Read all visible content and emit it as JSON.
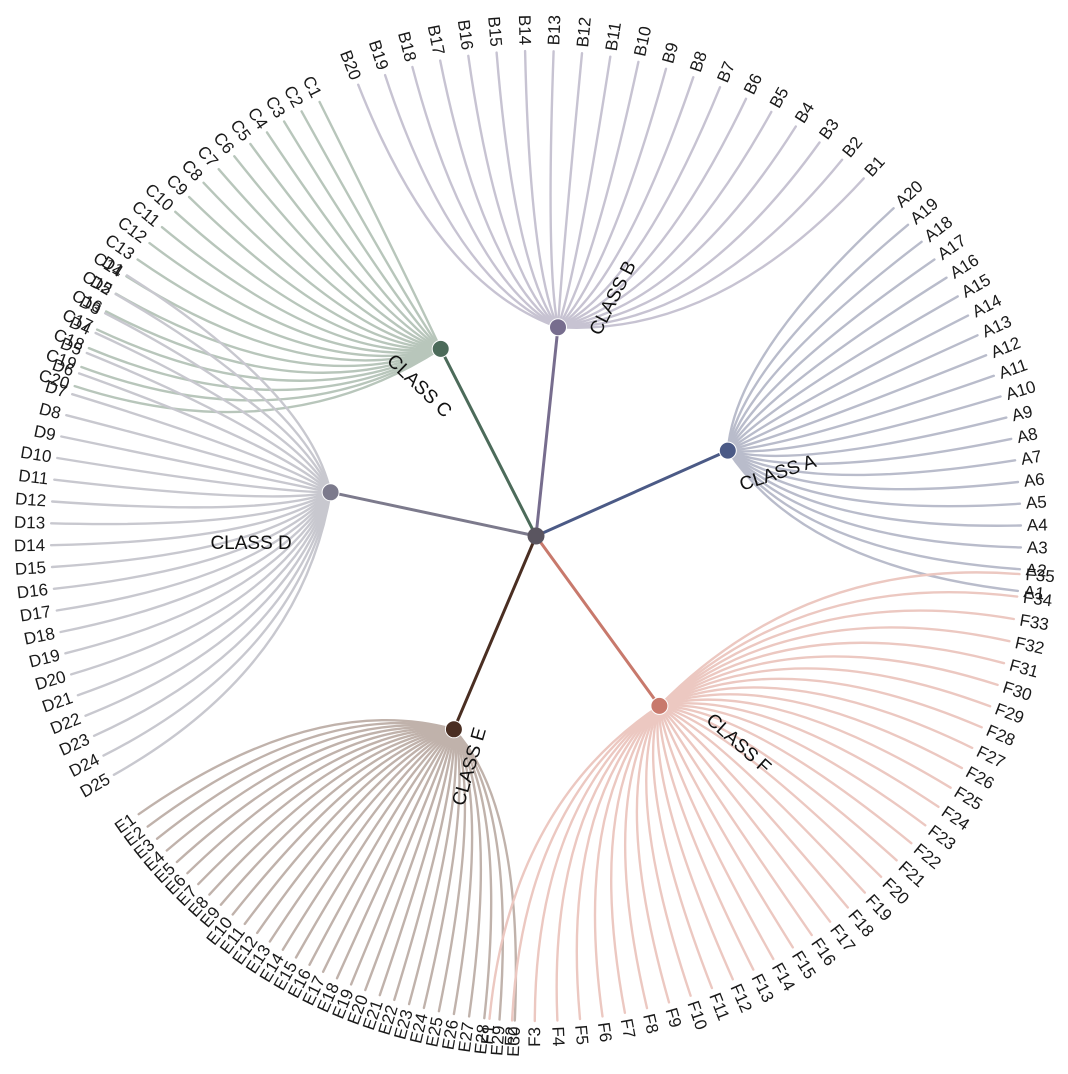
{
  "diagram": {
    "type": "circular-dendrogram",
    "root_color": "#5a5560",
    "groups": [
      {
        "name": "CLASS A",
        "color": "#4b5a86",
        "leaf_color": "#b9bccb",
        "leaves": [
          "A1",
          "A2",
          "A3",
          "A4",
          "A5",
          "A6",
          "A7",
          "A8",
          "A9",
          "A10",
          "A11",
          "A12",
          "A13",
          "A14",
          "A15",
          "A16",
          "A17",
          "A18",
          "A19",
          "A20"
        ]
      },
      {
        "name": "CLASS B",
        "color": "#776d8e",
        "leaf_color": "#c7c3d2",
        "leaves": [
          "B1",
          "B2",
          "B3",
          "B4",
          "B5",
          "B6",
          "B7",
          "B8",
          "B9",
          "B10",
          "B11",
          "B12",
          "B13",
          "B14",
          "B15",
          "B16",
          "B17",
          "B18",
          "B19",
          "B20"
        ]
      },
      {
        "name": "CLASS C",
        "color": "#4c6b5a",
        "leaf_color": "#b8c6bb",
        "leaves": [
          "C1",
          "C2",
          "C3",
          "C4",
          "C5",
          "C6",
          "C7",
          "C8",
          "C9",
          "C10",
          "C11",
          "C12",
          "C13",
          "C14",
          "C15",
          "C16",
          "C17",
          "C18",
          "C19",
          "C20"
        ]
      },
      {
        "name": "CLASS D",
        "color": "#7c7a8c",
        "leaf_color": "#c8c8cf",
        "leaves": [
          "D1",
          "D2",
          "D3",
          "D4",
          "D5",
          "D6",
          "D7",
          "D8",
          "D9",
          "D10",
          "D11",
          "D12",
          "D13",
          "D14",
          "D15",
          "D16",
          "D17",
          "D18",
          "D19",
          "D20",
          "D21",
          "D22",
          "D23",
          "D24",
          "D25"
        ]
      },
      {
        "name": "CLASS E",
        "color": "#4a2e22",
        "leaf_color": "#c0b2ab",
        "leaves": [
          "E1",
          "E2",
          "E3",
          "E4",
          "E5",
          "E6",
          "E7",
          "E8",
          "E9",
          "E10",
          "E11",
          "E12",
          "E13",
          "E14",
          "E15",
          "E16",
          "E17",
          "E18",
          "E19",
          "E20",
          "E21",
          "E22",
          "E23",
          "E24",
          "E25",
          "E26",
          "E27",
          "E28",
          "E29",
          "E30"
        ]
      },
      {
        "name": "CLASS F",
        "color": "#c8796c",
        "leaf_color": "#ecc8c1",
        "leaves": [
          "F1",
          "F2",
          "F3",
          "F4",
          "F5",
          "F6",
          "F7",
          "F8",
          "F9",
          "F10",
          "F11",
          "F12",
          "F13",
          "F14",
          "F15",
          "F16",
          "F17",
          "F18",
          "F19",
          "F20",
          "F21",
          "F22",
          "F23",
          "F24",
          "F25",
          "F26",
          "F27",
          "F28",
          "F29",
          "F30",
          "F31",
          "F32",
          "F33",
          "F34",
          "F35"
        ]
      }
    ]
  }
}
